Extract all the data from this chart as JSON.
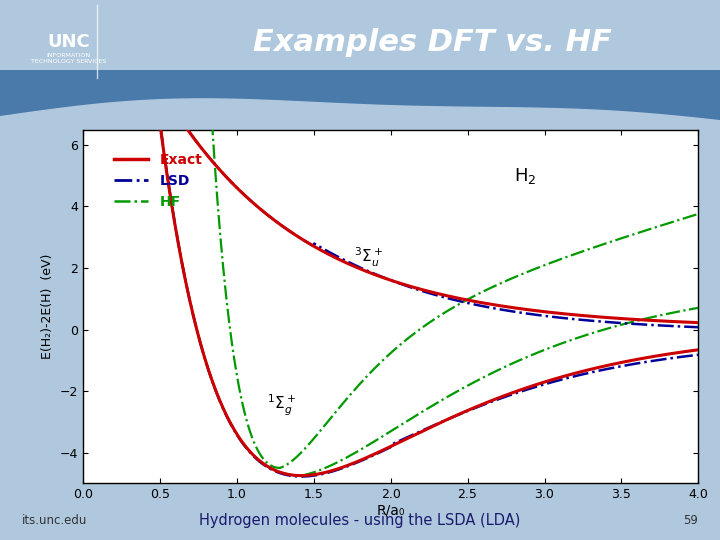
{
  "title": "Examples DFT vs. HF",
  "subtitle": "Hydrogen molecules - using the LSDA (LDA)",
  "page_number": "59",
  "footer_left": "its.unc.edu",
  "xlabel": "R/a₀",
  "ylabel": "E(H₂)-2E(H)  (eV)",
  "xlim": [
    0,
    4
  ],
  "ylim": [
    -5,
    6.5
  ],
  "xticks": [
    0,
    0.5,
    1,
    1.5,
    2,
    2.5,
    3,
    3.5,
    4
  ],
  "yticks": [
    -4,
    -2,
    0,
    2,
    4,
    6
  ],
  "slide_bg": "#b0c8de",
  "header_bg": "#4a7aaa",
  "wave_bg": "#b0c8de",
  "plot_bg": "#ffffff",
  "exact_color": "#cc0000",
  "lsd_color": "#000099",
  "hf_color": "#009900",
  "label_sigma_g": "$^1\\Sigma_g^+$",
  "label_sigma_u": "$^3\\Sigma_u^+$",
  "label_H2": "H$_2$",
  "legend_entries": [
    "Exact",
    "LSD",
    "HF"
  ],
  "legend_colors": [
    "#cc0000",
    "#000099",
    "#009900"
  ]
}
